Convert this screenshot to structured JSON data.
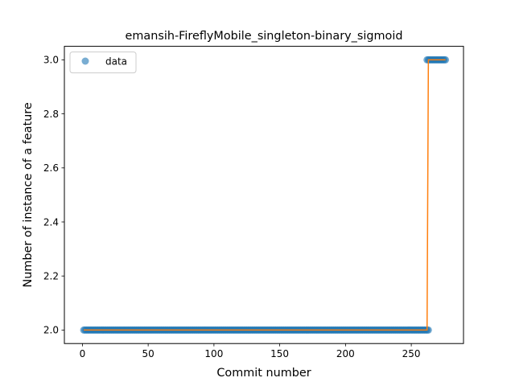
{
  "chart_data": {
    "type": "scatter",
    "title": "emansih-FireflyMobile_singleton-binary_sigmoid",
    "xlabel": "Commit number",
    "ylabel": "Number of instance of a feature",
    "xlim": [
      -13.7,
      289.7
    ],
    "ylim": [
      1.95,
      3.05
    ],
    "x_ticks": [
      0,
      50,
      100,
      150,
      200,
      250
    ],
    "x_tick_labels": [
      "0",
      "50",
      "100",
      "150",
      "200",
      "250"
    ],
    "y_ticks": [
      2.0,
      2.2,
      2.4,
      2.6,
      2.8,
      3.0
    ],
    "y_tick_labels": [
      "2.0",
      "2.2",
      "2.4",
      "2.6",
      "2.8",
      "3.0"
    ],
    "grid": false,
    "legend": {
      "placement": "top-left",
      "entries": [
        "data"
      ]
    },
    "series": [
      {
        "name": "data",
        "style": "markers",
        "color": "#1f77b4",
        "points": [
          {
            "x_from": 1,
            "x_to": 263,
            "y": 2
          },
          {
            "x_from": 262,
            "x_to": 276,
            "y": 3
          }
        ]
      },
      {
        "style": "line",
        "color": "#ff7f0e",
        "x": [
          1,
          262,
          263,
          276
        ],
        "y": [
          2,
          2,
          3,
          3
        ]
      }
    ]
  }
}
